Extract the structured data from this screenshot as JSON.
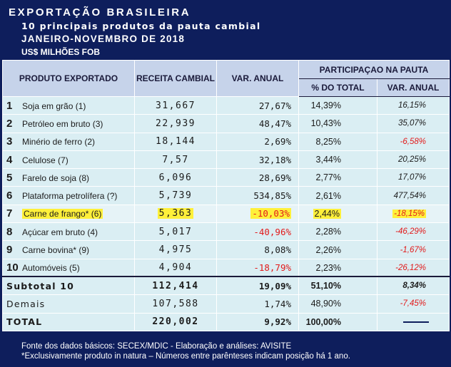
{
  "header": {
    "line1": "EXPORTAÇÃO BRASILEIRA",
    "line2": "10 principais produtos da pauta cambial",
    "line3": "JANEIRO-NOVEMBRO DE 2018",
    "line4": "US$ MILHÕES FOB"
  },
  "columns": {
    "produto": "PRODUTO EXPORTADO",
    "receita": "RECEITA CAMBIAL",
    "var_anual": "VAR. ANUAL",
    "participacao": "PARTICIPAÇAO NA PAUTA",
    "pct_total": "% DO TOTAL",
    "var_anual_sub": "VAR. ANUAL"
  },
  "rows": [
    {
      "rank": "1",
      "produto": "Soja em grão (1)",
      "receita": "31,667",
      "var": "27,67%",
      "pct": "14,39%",
      "varp": "16,15%"
    },
    {
      "rank": "2",
      "produto": "Petróleo em bruto (3)",
      "receita": "22,939",
      "var": "48,47%",
      "pct": "10,43%",
      "varp": "35,07%"
    },
    {
      "rank": "3",
      "produto": "Minério de ferro (2)",
      "receita": "18,144",
      "var": "2,69%",
      "pct": "8,25%",
      "varp": "-6,58%"
    },
    {
      "rank": "4",
      "produto": "Celulose (7)",
      "receita": "7,57",
      "var": "32,18%",
      "pct": "3,44%",
      "varp": "20,25%"
    },
    {
      "rank": "5",
      "produto": "Farelo de soja (8)",
      "receita": "6,096",
      "var": "28,69%",
      "pct": "2,77%",
      "varp": "17,07%"
    },
    {
      "rank": "6",
      "produto": "Plataforma petrolífera (?)",
      "receita": "5,739",
      "var": "534,85%",
      "pct": "2,61%",
      "varp": "477,54%"
    },
    {
      "rank": "7",
      "produto": "Carne de frango* (6)",
      "receita": "5,363",
      "var": "-10,03%",
      "pct": "2,44%",
      "varp": "-18,15%"
    },
    {
      "rank": "8",
      "produto": "Açúcar em bruto (4)",
      "receita": "5,017",
      "var": "-40,96%",
      "pct": "2,28%",
      "varp": "-46,29%"
    },
    {
      "rank": "9",
      "produto": "Carne bovina* (9)",
      "receita": "4,975",
      "var": "8,08%",
      "pct": "2,26%",
      "varp": "-1,67%"
    },
    {
      "rank": "10",
      "produto": "Automóveis (5)",
      "receita": "4,904",
      "var": "-18,79%",
      "pct": "2,23%",
      "varp": "-26,12%"
    }
  ],
  "subtotal": {
    "label": "Subtotal 10",
    "receita": "112,414",
    "var": "19,09%",
    "pct": "51,10%",
    "varp": "8,34%"
  },
  "demais": {
    "label": "Demais",
    "receita": "107,588",
    "var": "1,74%",
    "pct": "48,90%",
    "varp": "-7,45%"
  },
  "total": {
    "label": "TOTAL",
    "receita": "220,002",
    "var": "9,92%",
    "pct": "100,00%"
  },
  "footer": {
    "line1": "Fonte dos dados básicos: SECEX/MDIC - Elaboração e análises: AVISITE",
    "line2": "*Exclusivamente produto in natura – Números entre parênteses indicam posição há 1 ano."
  },
  "colors": {
    "frame": "#0e1e5c",
    "header_cell": "#c6d3ea",
    "body_cell": "#daeef3",
    "negative": "#e21b1b",
    "highlight": "#fff03a"
  },
  "highlighted_rank": "7"
}
